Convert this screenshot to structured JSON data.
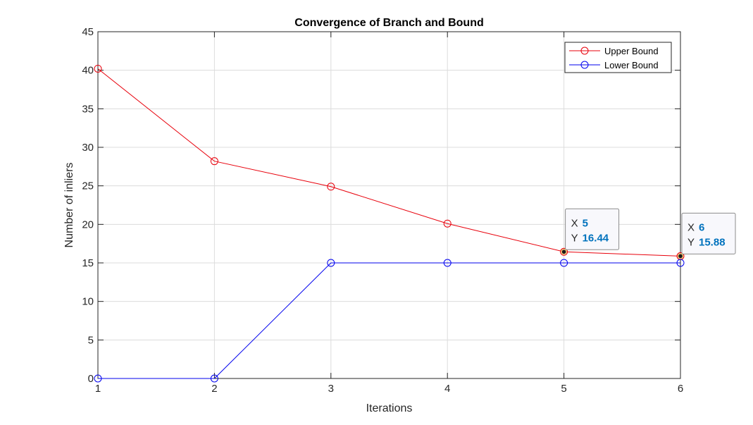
{
  "chart_data": {
    "type": "line",
    "title": "Convergence of Branch and Bound",
    "xlabel": "Iterations",
    "ylabel": "Number of inliers",
    "x": [
      1,
      2,
      3,
      4,
      5,
      6
    ],
    "xlim": [
      1,
      6
    ],
    "ylim": [
      0,
      45
    ],
    "xticks": [
      "1",
      "2",
      "3",
      "4",
      "5",
      "6"
    ],
    "yticks": [
      "0",
      "5",
      "10",
      "15",
      "20",
      "25",
      "30",
      "35",
      "40",
      "45"
    ],
    "grid": true,
    "legend_position": "top-right",
    "series": [
      {
        "name": "Upper Bound",
        "color": "#e8000b",
        "marker": "circle",
        "values": [
          40.2,
          28.2,
          24.9,
          20.1,
          16.44,
          15.88
        ]
      },
      {
        "name": "Lower Bound",
        "color": "#0000ee",
        "marker": "circle",
        "values": [
          0,
          0,
          15,
          15,
          15,
          15
        ]
      }
    ],
    "datatips": [
      {
        "x": 5,
        "y": 16.44,
        "x_key": "X",
        "y_key": "Y",
        "x_text": "5",
        "y_text": "16.44"
      },
      {
        "x": 6,
        "y": 15.88,
        "x_key": "X",
        "y_key": "Y",
        "x_text": "6",
        "y_text": "15.88"
      }
    ]
  }
}
